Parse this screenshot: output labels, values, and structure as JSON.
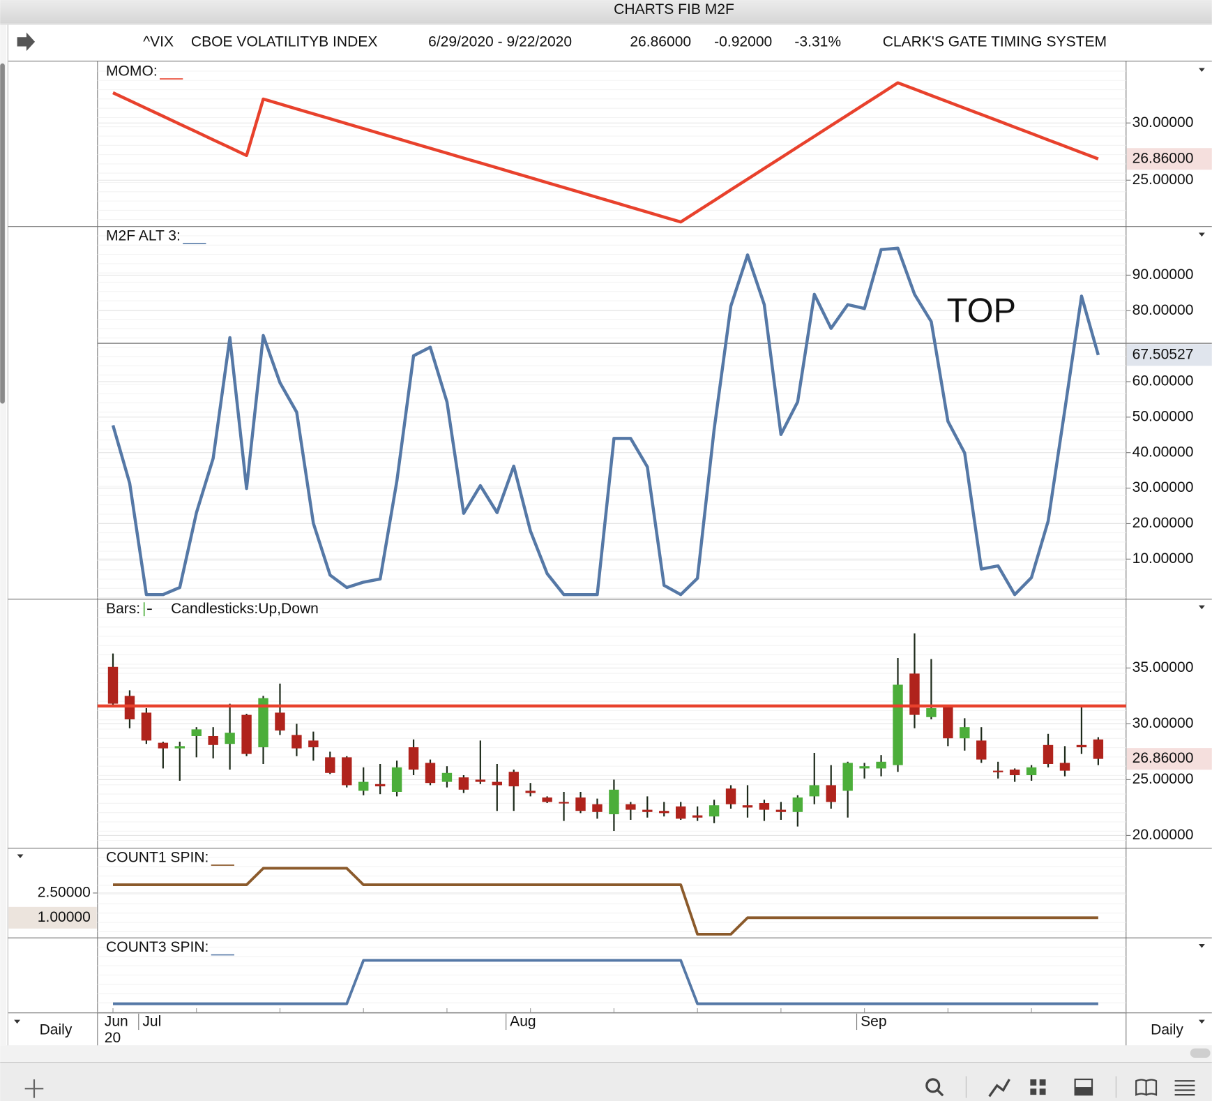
{
  "header": {
    "window_title": "CHARTS FIB M2F",
    "symbol": "^VIX",
    "name": "CBOE VOLATILITYB INDEX",
    "date_range": "6/29/2020 - 9/22/2020",
    "last": "26.86000",
    "change": "-0.92000",
    "change_pct": "-3.31%",
    "system": "CLARK'S GATE TIMING SYSTEM"
  },
  "x_axis": {
    "categories": [
      "Jun",
      null,
      "Jul",
      null,
      null,
      null,
      null,
      null,
      null,
      null,
      null,
      null,
      null,
      null,
      null,
      null,
      null,
      null,
      null,
      null,
      null,
      null,
      null,
      null,
      "Aug",
      null,
      null,
      null,
      null,
      null,
      null,
      null,
      null,
      null,
      null,
      null,
      null,
      null,
      null,
      null,
      null,
      null,
      null,
      null,
      null,
      "Sep",
      null,
      null,
      null,
      null,
      null,
      null,
      null,
      null,
      null,
      null,
      null,
      null,
      null,
      null
    ],
    "year_label": "20",
    "period": "Daily"
  },
  "chart_data": [
    {
      "type": "line",
      "label": "MOMO:",
      "series": [
        {
          "color": "#e8412c",
          "values": [
            32.64,
            31.96,
            31.27,
            30.59,
            29.9,
            29.22,
            28.53,
            27.85,
            27.16,
            32.09,
            31.66,
            31.23,
            30.8,
            30.37,
            29.94,
            29.51,
            29.08,
            28.65,
            28.22,
            27.79,
            27.36,
            26.93,
            26.51,
            26.08,
            25.65,
            25.22,
            24.79,
            24.36,
            23.93,
            23.5,
            23.07,
            22.64,
            22.21,
            21.78,
            21.35,
            22.29,
            23.22,
            24.16,
            25.09,
            26.03,
            26.96,
            27.9,
            28.83,
            29.77,
            30.7,
            31.64,
            32.57,
            33.51,
            32.96,
            32.4,
            31.85,
            31.29,
            30.74,
            30.19,
            29.63,
            29.08,
            28.52,
            27.97,
            27.41,
            26.86
          ]
        }
      ],
      "ylim": [
        20.95,
        35.34
      ],
      "yticks": [
        {
          "value": 25,
          "label": "25.00000"
        },
        {
          "value": 30,
          "label": "30.00000"
        }
      ],
      "current": {
        "value": 26.86,
        "label": "26.86000",
        "color": "#c0392b"
      }
    },
    {
      "type": "line",
      "label": "M2F ALT 3:",
      "series": [
        {
          "color": "#5578a6",
          "values": [
            47.7,
            31.4,
            0,
            0,
            2.0,
            23.1,
            38.4,
            72.4,
            29.9,
            73.0,
            59.7,
            51.4,
            20.1,
            5.5,
            2.0,
            3.5,
            4.4,
            32.0,
            67.3,
            69.7,
            54.3,
            22.9,
            30.7,
            23.1,
            36.2,
            17.9,
            5.9,
            0,
            0,
            0,
            44.0,
            44.0,
            36.0,
            2.6,
            0,
            4.6,
            46.6,
            81.3,
            95.7,
            81.7,
            45.1,
            54.3,
            84.6,
            75.0,
            81.7,
            80.6,
            97.2,
            97.6,
            84.6,
            76.9,
            48.8,
            39.9,
            7.2,
            8.1,
            0,
            4.8,
            20.7,
            52.1,
            84.1,
            67.50527
          ]
        }
      ],
      "ylim": [
        -1.3,
        103.7
      ],
      "yticks": [
        {
          "value": 10,
          "label": "10.00000"
        },
        {
          "value": 20,
          "label": "20.00000"
        },
        {
          "value": 30,
          "label": "30.00000"
        },
        {
          "value": 40,
          "label": "40.00000"
        },
        {
          "value": 50,
          "label": "50.00000"
        },
        {
          "value": 60,
          "label": "60.00000"
        },
        {
          "value": 80,
          "label": "80.00000"
        },
        {
          "value": 90,
          "label": "90.00000"
        }
      ],
      "current": {
        "value": 67.50527,
        "label": "67.50527",
        "color": "#3d5f8c"
      },
      "reference_line": 70.8,
      "annotation": "TOP"
    },
    {
      "type": "candlestick",
      "legend": {
        "bars": "Bars:",
        "candlesticks": "Candlesticks:",
        "up": "Up",
        "separator": ",",
        "down": "Down"
      },
      "up_color": "#4cae3a",
      "down_color": "#b0231c",
      "hline": {
        "value": 31.6,
        "color": "#e8412c"
      },
      "open": [
        35.1,
        32.5,
        31.0,
        28.3,
        27.8,
        28.9,
        28.9,
        28.2,
        30.8,
        27.9,
        31.0,
        29.0,
        28.5,
        27.0,
        27.0,
        24.0,
        24.6,
        23.9,
        27.9,
        26.5,
        24.8,
        25.2,
        25.0,
        24.8,
        25.7,
        24.0,
        23.4,
        23.0,
        23.4,
        22.8,
        21.9,
        22.8,
        22.3,
        22.2,
        22.6,
        21.8,
        21.7,
        24.2,
        22.7,
        22.9,
        22.3,
        22.1,
        23.5,
        24.5,
        24.0,
        26.0,
        26.0,
        26.3,
        34.5,
        30.6,
        31.5,
        28.7,
        28.5,
        25.8,
        25.9,
        25.4,
        28.1,
        26.5,
        28.1,
        28.6
      ],
      "high": [
        36.3,
        33.0,
        31.4,
        28.4,
        28.4,
        29.7,
        29.7,
        31.8,
        30.9,
        32.5,
        33.6,
        30.0,
        29.3,
        27.5,
        27.1,
        26.1,
        26.4,
        26.7,
        28.6,
        26.8,
        26.2,
        25.4,
        28.5,
        26.4,
        25.9,
        24.7,
        23.5,
        23.9,
        23.9,
        23.3,
        25.0,
        23.0,
        23.5,
        23.0,
        23.0,
        22.6,
        23.2,
        24.5,
        24.5,
        23.2,
        23.0,
        23.6,
        27.4,
        26.3,
        26.6,
        26.5,
        27.2,
        35.9,
        38.1,
        35.8,
        31.5,
        30.5,
        29.7,
        26.6,
        26.0,
        26.3,
        29.1,
        28.0,
        31.6,
        28.8
      ],
      "low": [
        31.7,
        29.6,
        28.2,
        26.0,
        24.9,
        27.0,
        26.9,
        25.9,
        27.1,
        26.4,
        29.0,
        27.1,
        26.7,
        25.5,
        24.3,
        23.6,
        23.7,
        23.5,
        25.4,
        24.5,
        24.3,
        23.8,
        24.6,
        22.2,
        22.2,
        23.5,
        22.9,
        21.3,
        22.0,
        21.5,
        20.4,
        21.4,
        21.6,
        21.7,
        21.4,
        21.3,
        21.1,
        22.4,
        21.6,
        21.3,
        21.4,
        20.8,
        22.8,
        22.4,
        21.6,
        25.1,
        25.3,
        25.7,
        29.6,
        30.4,
        28.0,
        27.6,
        26.5,
        25.1,
        24.8,
        24.9,
        26.1,
        25.3,
        27.3,
        26.3
      ],
      "close": [
        31.8,
        30.4,
        28.5,
        27.8,
        28.0,
        29.5,
        28.1,
        29.2,
        27.3,
        32.3,
        29.4,
        27.8,
        27.9,
        25.6,
        24.5,
        24.8,
        24.4,
        26.1,
        25.9,
        24.7,
        25.6,
        24.1,
        24.8,
        24.5,
        24.4,
        23.8,
        23.0,
        22.9,
        22.2,
        22.1,
        24.1,
        22.3,
        22.1,
        22.0,
        21.5,
        21.6,
        22.7,
        22.8,
        22.5,
        22.3,
        22.1,
        23.4,
        24.5,
        23.0,
        26.5,
        26.2,
        26.6,
        33.5,
        30.8,
        31.4,
        28.7,
        29.7,
        26.8,
        25.7,
        25.4,
        26.1,
        26.4,
        25.8,
        27.9,
        26.86
      ],
      "ylim": [
        18.86,
        41.16
      ],
      "yticks": [
        {
          "value": 20,
          "label": "20.00000"
        },
        {
          "value": 25,
          "label": "25.00000"
        },
        {
          "value": 30,
          "label": "30.00000"
        },
        {
          "value": 35,
          "label": "35.00000"
        }
      ],
      "current": {
        "value": 26.86,
        "label": "26.86000",
        "color": "#c0392b"
      }
    },
    {
      "type": "line",
      "label": "COUNT1 SPIN:",
      "axis_side": "left",
      "series": [
        {
          "color": "#8b5a2b",
          "values": [
            3,
            3,
            3,
            3,
            3,
            3,
            3,
            3,
            3,
            4,
            4,
            4,
            4,
            4,
            4,
            3,
            3,
            3,
            3,
            3,
            3,
            3,
            3,
            3,
            3,
            3,
            3,
            3,
            3,
            3,
            3,
            3,
            3,
            3,
            3,
            0,
            0,
            0,
            1,
            1,
            1,
            1,
            1,
            1,
            1,
            1,
            1,
            1,
            1,
            1,
            1,
            1,
            1,
            1,
            1,
            1,
            1,
            1,
            1,
            1
          ]
        }
      ],
      "ylim": [
        -0.22,
        5.22
      ],
      "yticks": [
        {
          "value": 2.5,
          "label": "2.50000"
        }
      ],
      "current": {
        "value": 1,
        "label": "1.00000",
        "color": "#8b5a2b"
      }
    },
    {
      "type": "line",
      "label": "COUNT3 SPIN:",
      "series": [
        {
          "color": "#5578a6",
          "values": [
            0,
            0,
            0,
            0,
            0,
            0,
            0,
            0,
            0,
            0,
            0,
            0,
            0,
            0,
            0,
            1,
            1,
            1,
            1,
            1,
            1,
            1,
            1,
            1,
            1,
            1,
            1,
            1,
            1,
            1,
            1,
            1,
            1,
            1,
            1,
            0,
            0,
            0,
            0,
            0,
            0,
            0,
            0,
            0,
            0,
            0,
            0,
            0,
            0,
            0,
            0,
            0,
            0,
            0,
            0,
            0,
            0,
            0,
            0,
            0
          ]
        }
      ],
      "ylim": [
        -0.21,
        1.52
      ]
    }
  ]
}
